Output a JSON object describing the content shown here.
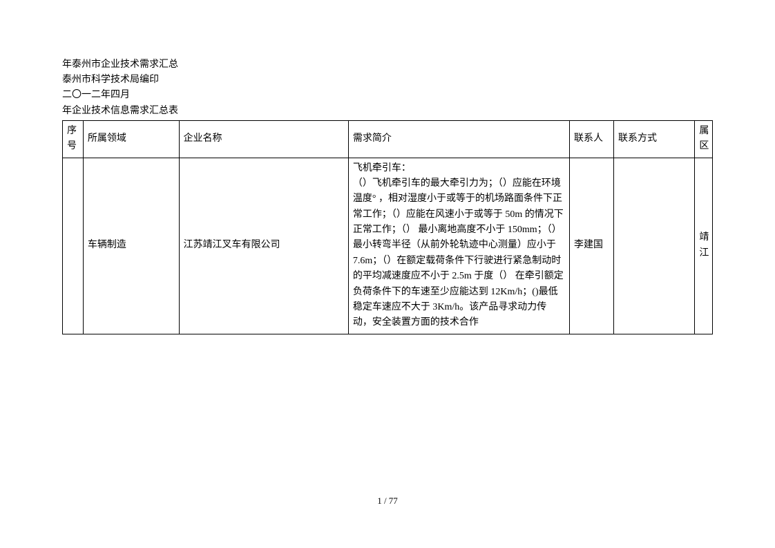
{
  "header": {
    "line1": "年泰州市企业技术需求汇总",
    "line2": "泰州市科学技术局编印",
    "line3": "二〇一二年四月",
    "line4": "年企业技术信息需求汇总表"
  },
  "table": {
    "columns": {
      "seq": "序号",
      "field": "所属领域",
      "company": "企业名称",
      "desc": "需求简介",
      "contact": "联系人",
      "phone": "联系方式",
      "area": "属区"
    },
    "rows": [
      {
        "seq": "",
        "field": "车辆制造",
        "company": "江苏靖江叉车有限公司",
        "desc": "飞机牵引车：\n（）飞机牵引车的最大牵引力为；（）应能在环境温度° ，相对湿度小于或等于的机场路面条件下正常工作；（）应能在风速小于或等于 50m 的情况下正常工作；（） 最小离地高度不小于 150mm；（）最小转弯半径（从前外轮轨迹中心测量）应小于 7.6m；（）在额定载荷条件下行驶进行紧急制动时的平均减速度应不小于 2.5m 于度（）  在牵引额定负荷条件下的车速至少应能达到 12Km/h；()最低稳定车速应不大于 3Km/h。该产品寻求动力传动，安全装置方面的技术合作",
        "contact": "李建国",
        "phone": "",
        "area": "靖江"
      }
    ]
  },
  "footer": {
    "page_label": "1  /  77"
  }
}
